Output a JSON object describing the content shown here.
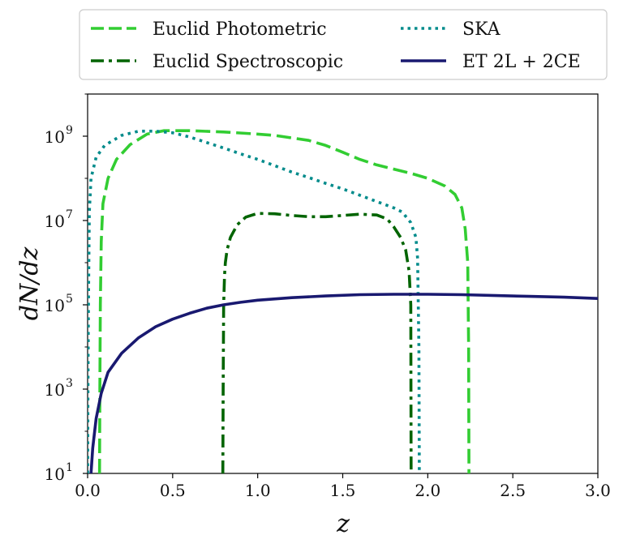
{
  "chart_data": {
    "type": "line",
    "title": "",
    "xlabel": "z",
    "ylabel": "dN/dz",
    "xscale": "linear",
    "yscale": "log",
    "xlim": [
      0.0,
      3.0
    ],
    "ylim_log10": [
      1,
      10
    ],
    "x_ticks": [
      {
        "value": 0.0,
        "label": "0.0"
      },
      {
        "value": 0.5,
        "label": "0.5"
      },
      {
        "value": 1.0,
        "label": "1.0"
      },
      {
        "value": 1.5,
        "label": "1.5"
      },
      {
        "value": 2.0,
        "label": "2.0"
      },
      {
        "value": 2.5,
        "label": "2.5"
      },
      {
        "value": 3.0,
        "label": "3.0"
      }
    ],
    "y_ticks": [
      {
        "exp": 1,
        "base": "10",
        "sup": "1"
      },
      {
        "exp": 3,
        "base": "10",
        "sup": "3"
      },
      {
        "exp": 5,
        "base": "10",
        "sup": "5"
      },
      {
        "exp": 7,
        "base": "10",
        "sup": "7"
      },
      {
        "exp": 9,
        "base": "10",
        "sup": "9"
      }
    ],
    "legend_position": "top-outside",
    "series": [
      {
        "name": "Euclid Photometric",
        "color": "#32cd32",
        "style": "dashed",
        "points": [
          [
            0.07,
            1
          ],
          [
            0.072,
            3
          ],
          [
            0.075,
            5
          ],
          [
            0.08,
            6.5
          ],
          [
            0.09,
            7.4
          ],
          [
            0.12,
            8.0
          ],
          [
            0.17,
            8.45
          ],
          [
            0.25,
            8.8
          ],
          [
            0.35,
            9.05
          ],
          [
            0.45,
            9.13
          ],
          [
            0.6,
            9.13
          ],
          [
            0.8,
            9.1
          ],
          [
            1.0,
            9.05
          ],
          [
            1.1,
            9.02
          ],
          [
            1.2,
            8.96
          ],
          [
            1.3,
            8.9
          ],
          [
            1.4,
            8.78
          ],
          [
            1.5,
            8.62
          ],
          [
            1.6,
            8.45
          ],
          [
            1.7,
            8.32
          ],
          [
            1.8,
            8.22
          ],
          [
            1.9,
            8.12
          ],
          [
            2.0,
            8.0
          ],
          [
            2.1,
            7.82
          ],
          [
            2.16,
            7.62
          ],
          [
            2.2,
            7.3
          ],
          [
            2.22,
            6.8
          ],
          [
            2.235,
            6.0
          ],
          [
            2.24,
            4.0
          ],
          [
            2.242,
            1
          ]
        ]
      },
      {
        "name": "SKA",
        "color": "#008b8b",
        "style": "dotted",
        "points": [
          [
            0.0,
            1
          ],
          [
            0.002,
            3
          ],
          [
            0.005,
            5
          ],
          [
            0.01,
            7.2
          ],
          [
            0.02,
            8.0
          ],
          [
            0.05,
            8.5
          ],
          [
            0.1,
            8.78
          ],
          [
            0.2,
            9.02
          ],
          [
            0.3,
            9.12
          ],
          [
            0.4,
            9.12
          ],
          [
            0.5,
            9.08
          ],
          [
            0.6,
            8.98
          ],
          [
            0.7,
            8.85
          ],
          [
            0.8,
            8.72
          ],
          [
            0.9,
            8.58
          ],
          [
            1.0,
            8.45
          ],
          [
            1.1,
            8.3
          ],
          [
            1.2,
            8.15
          ],
          [
            1.3,
            8.02
          ],
          [
            1.4,
            7.88
          ],
          [
            1.5,
            7.75
          ],
          [
            1.6,
            7.6
          ],
          [
            1.7,
            7.45
          ],
          [
            1.8,
            7.3
          ],
          [
            1.85,
            7.2
          ],
          [
            1.9,
            6.95
          ],
          [
            1.93,
            6.6
          ],
          [
            1.94,
            6.1
          ],
          [
            1.948,
            4.0
          ],
          [
            1.95,
            1
          ]
        ]
      },
      {
        "name": "Euclid Spectroscopic",
        "color": "#006400",
        "style": "dashdot",
        "points": [
          [
            0.795,
            1
          ],
          [
            0.797,
            3
          ],
          [
            0.8,
            5
          ],
          [
            0.805,
            5.7
          ],
          [
            0.81,
            6.0
          ],
          [
            0.82,
            6.3
          ],
          [
            0.84,
            6.6
          ],
          [
            0.88,
            6.9
          ],
          [
            0.93,
            7.08
          ],
          [
            1.0,
            7.17
          ],
          [
            1.1,
            7.16
          ],
          [
            1.2,
            7.12
          ],
          [
            1.3,
            7.09
          ],
          [
            1.4,
            7.09
          ],
          [
            1.5,
            7.12
          ],
          [
            1.6,
            7.15
          ],
          [
            1.7,
            7.13
          ],
          [
            1.76,
            7.04
          ],
          [
            1.8,
            6.85
          ],
          [
            1.84,
            6.6
          ],
          [
            1.87,
            6.3
          ],
          [
            1.89,
            5.8
          ],
          [
            1.9,
            5.0
          ],
          [
            1.901,
            3.0
          ],
          [
            1.902,
            1
          ]
        ]
      },
      {
        "name": "ET 2L + 2CE",
        "color": "#191970",
        "style": "solid",
        "points": [
          [
            0.02,
            1
          ],
          [
            0.03,
            1.6
          ],
          [
            0.05,
            2.3
          ],
          [
            0.08,
            2.9
          ],
          [
            0.12,
            3.4
          ],
          [
            0.2,
            3.85
          ],
          [
            0.3,
            4.22
          ],
          [
            0.4,
            4.48
          ],
          [
            0.5,
            4.66
          ],
          [
            0.6,
            4.8
          ],
          [
            0.7,
            4.92
          ],
          [
            0.8,
            5.0
          ],
          [
            0.9,
            5.06
          ],
          [
            1.0,
            5.11
          ],
          [
            1.2,
            5.17
          ],
          [
            1.4,
            5.21
          ],
          [
            1.6,
            5.24
          ],
          [
            1.8,
            5.25
          ],
          [
            2.0,
            5.25
          ],
          [
            2.2,
            5.24
          ],
          [
            2.4,
            5.22
          ],
          [
            2.6,
            5.2
          ],
          [
            2.8,
            5.18
          ],
          [
            3.0,
            5.15
          ]
        ]
      }
    ],
    "legend": [
      {
        "label": "Euclid Photometric",
        "color": "#32cd32",
        "style": "dashed"
      },
      {
        "label": "SKA",
        "color": "#008b8b",
        "style": "dotted"
      },
      {
        "label": "Euclid Spectroscopic",
        "color": "#006400",
        "style": "dashdot"
      },
      {
        "label": "ET 2L + 2CE",
        "color": "#191970",
        "style": "solid"
      }
    ]
  }
}
